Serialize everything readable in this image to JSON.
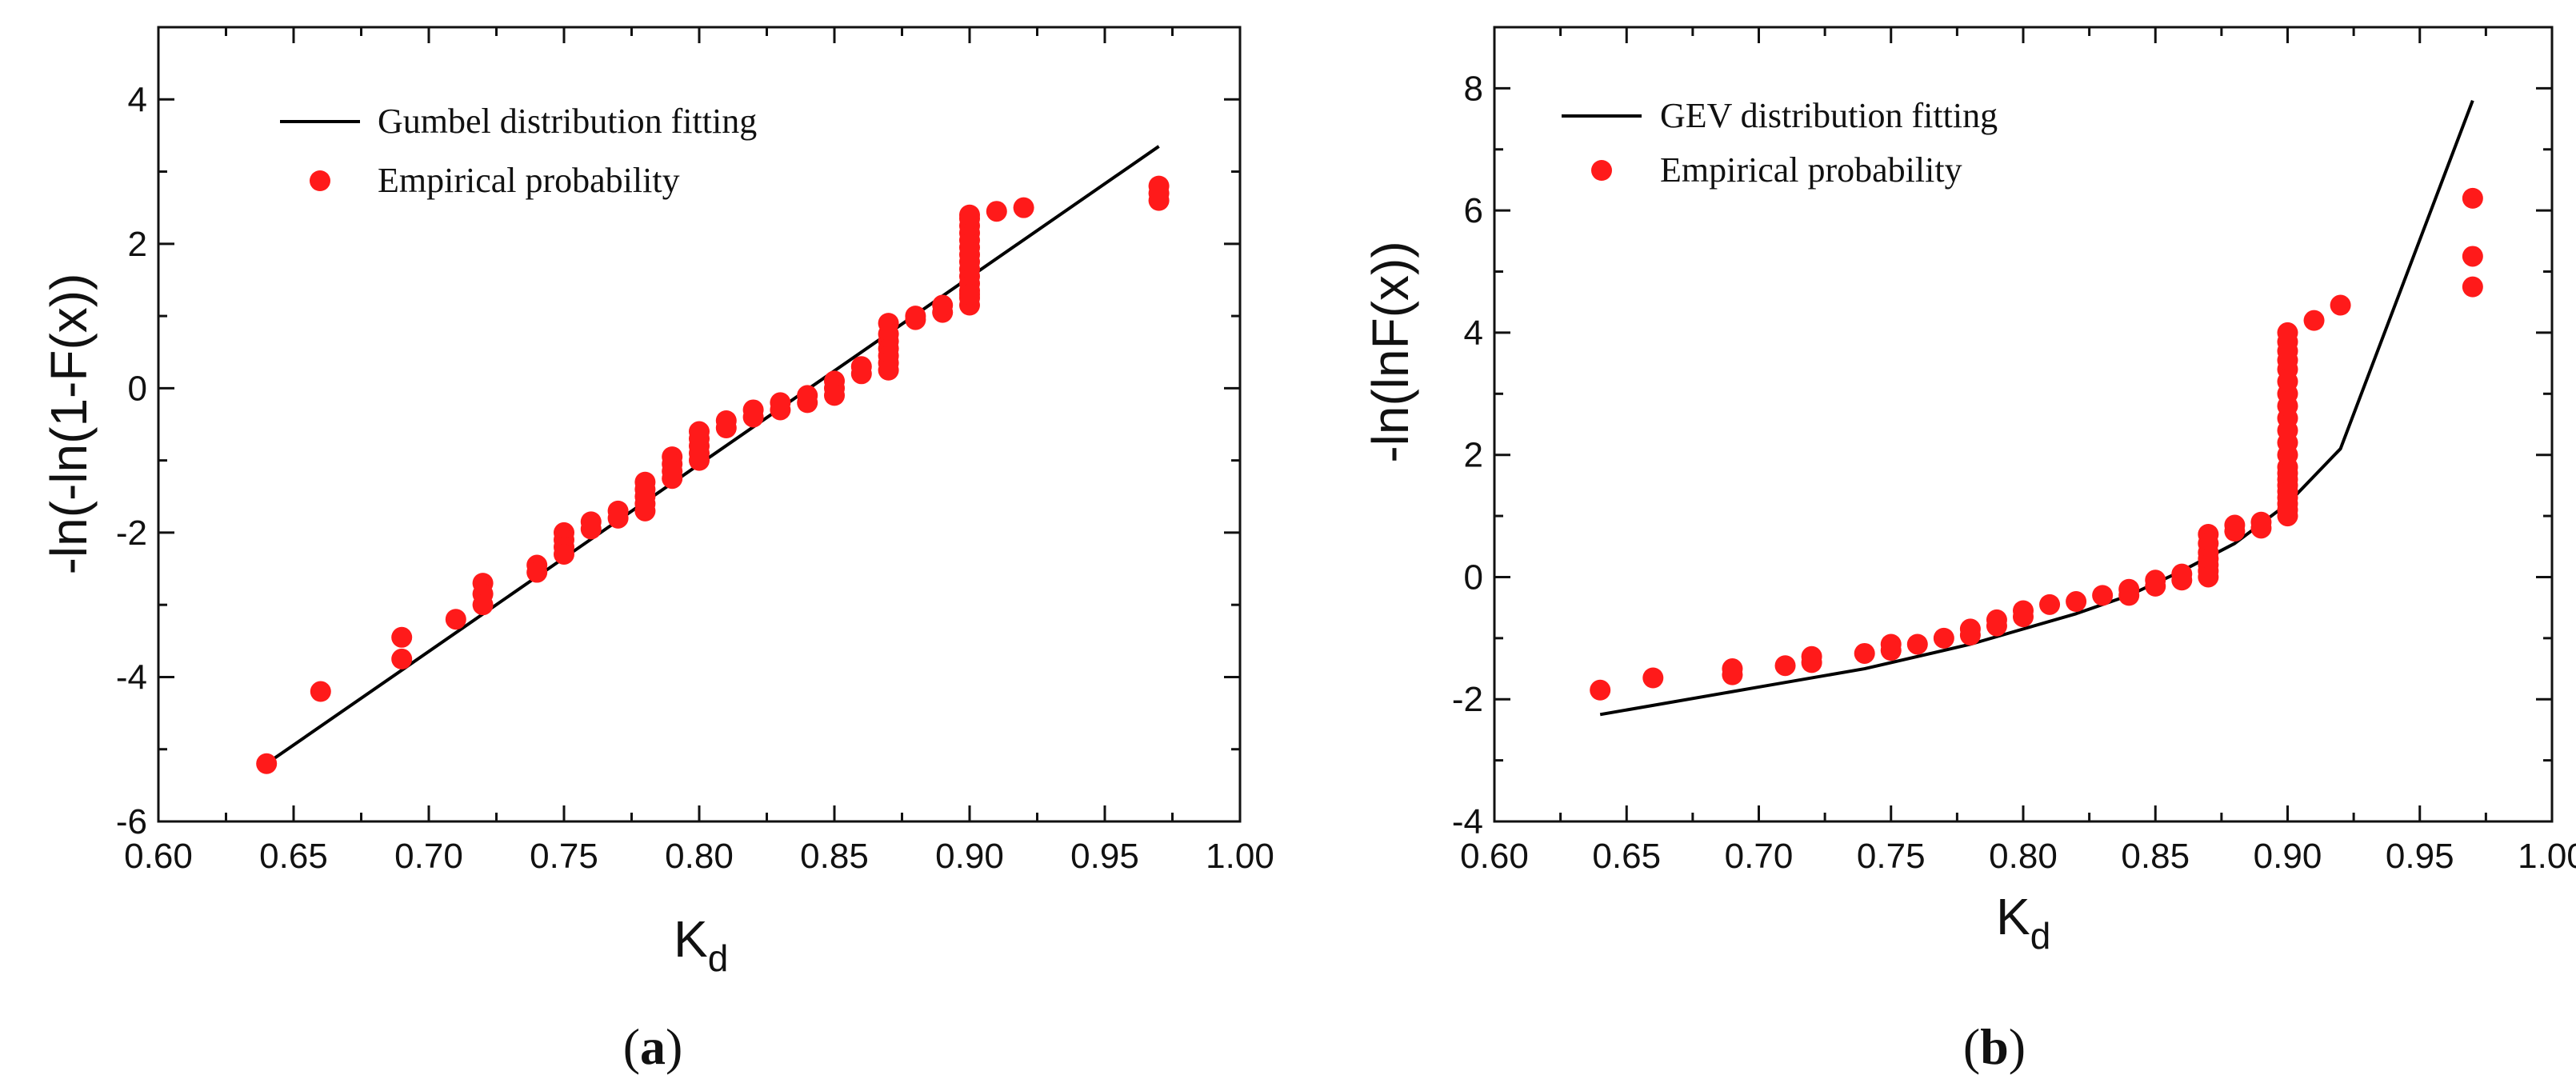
{
  "chart_data": [
    {
      "type": "scatter",
      "panel_label": {
        "open": "(",
        "letter": "a",
        "close": ")"
      },
      "xlabel": {
        "main": "K",
        "sub": "d"
      },
      "ylabel": "-ln(-ln(1-F(x))",
      "xlim": [
        0.6,
        1.0
      ],
      "ylim": [
        -6,
        5
      ],
      "xticks": [
        "0.60",
        "0.65",
        "0.70",
        "0.75",
        "0.80",
        "0.85",
        "0.90",
        "0.95",
        "1.00"
      ],
      "yticks": [
        "-6",
        "-4",
        "-2",
        "0",
        "2",
        "4"
      ],
      "legend_position": "top-left",
      "legend": {
        "line_label": "Gumbel distribution fitting",
        "point_label": "Empirical probability"
      },
      "colors": {
        "fit": "#000000",
        "points": "#ff1a1a"
      },
      "fit_line": {
        "x": [
          0.64,
          0.97
        ],
        "y": [
          -5.2,
          3.35
        ]
      },
      "points": {
        "x": [
          0.64,
          0.66,
          0.69,
          0.69,
          0.71,
          0.72,
          0.72,
          0.72,
          0.74,
          0.74,
          0.75,
          0.75,
          0.75,
          0.75,
          0.76,
          0.76,
          0.77,
          0.77,
          0.78,
          0.78,
          0.78,
          0.78,
          0.78,
          0.79,
          0.79,
          0.79,
          0.79,
          0.8,
          0.8,
          0.8,
          0.8,
          0.8,
          0.81,
          0.81,
          0.82,
          0.82,
          0.83,
          0.83,
          0.84,
          0.84,
          0.85,
          0.85,
          0.85,
          0.86,
          0.86,
          0.87,
          0.87,
          0.87,
          0.87,
          0.87,
          0.87,
          0.87,
          0.88,
          0.88,
          0.89,
          0.89,
          0.9,
          0.9,
          0.9,
          0.9,
          0.9,
          0.9,
          0.9,
          0.9,
          0.9,
          0.9,
          0.9,
          0.9,
          0.9,
          0.9,
          0.9,
          0.91,
          0.92,
          0.97,
          0.97,
          0.97
        ],
        "y": [
          -5.2,
          -4.2,
          -3.45,
          -3.75,
          -3.2,
          -2.7,
          -2.85,
          -3.0,
          -2.45,
          -2.55,
          -2.0,
          -2.1,
          -2.2,
          -2.3,
          -1.85,
          -1.95,
          -1.7,
          -1.8,
          -1.3,
          -1.4,
          -1.5,
          -1.6,
          -1.7,
          -0.95,
          -1.05,
          -1.15,
          -1.25,
          -0.6,
          -0.7,
          -0.8,
          -0.9,
          -1.0,
          -0.45,
          -0.55,
          -0.3,
          -0.4,
          -0.2,
          -0.3,
          -0.1,
          -0.2,
          0.1,
          0.0,
          -0.1,
          0.3,
          0.2,
          0.9,
          0.75,
          0.65,
          0.55,
          0.45,
          0.35,
          0.25,
          1.0,
          0.95,
          1.05,
          1.15,
          1.15,
          1.25,
          1.35,
          1.45,
          1.55,
          1.65,
          1.75,
          1.85,
          1.95,
          2.05,
          2.15,
          2.25,
          2.35,
          2.4,
          1.3,
          2.45,
          2.5,
          2.6,
          2.7,
          2.8
        ]
      }
    },
    {
      "type": "scatter",
      "panel_label": {
        "open": "(",
        "letter": "b",
        "close": ")"
      },
      "xlabel": {
        "main": "K",
        "sub": "d"
      },
      "ylabel": "-ln(lnF(x))",
      "xlim": [
        0.6,
        1.0
      ],
      "ylim": [
        -4,
        9
      ],
      "xticks": [
        "0.60",
        "0.65",
        "0.70",
        "0.75",
        "0.80",
        "0.85",
        "0.90",
        "0.95",
        "1.00"
      ],
      "yticks": [
        "-4",
        "-2",
        "0",
        "2",
        "4",
        "6",
        "8"
      ],
      "legend_position": "top-left",
      "legend": {
        "line_label": "GEV distribution fitting",
        "point_label": "Empirical probability"
      },
      "colors": {
        "fit": "#000000",
        "points": "#ff1a1a"
      },
      "fit_line": {
        "x": [
          0.64,
          0.66,
          0.7,
          0.74,
          0.78,
          0.8,
          0.82,
          0.84,
          0.86,
          0.88,
          0.9,
          0.92,
          0.97
        ],
        "y": [
          -2.25,
          -2.1,
          -1.8,
          -1.5,
          -1.1,
          -0.85,
          -0.6,
          -0.3,
          0.1,
          0.55,
          1.2,
          2.1,
          7.8
        ]
      },
      "points": {
        "x": [
          0.64,
          0.66,
          0.69,
          0.69,
          0.71,
          0.72,
          0.72,
          0.74,
          0.75,
          0.75,
          0.76,
          0.77,
          0.78,
          0.78,
          0.79,
          0.79,
          0.8,
          0.8,
          0.81,
          0.82,
          0.83,
          0.84,
          0.84,
          0.85,
          0.85,
          0.86,
          0.86,
          0.87,
          0.87,
          0.87,
          0.87,
          0.87,
          0.87,
          0.87,
          0.88,
          0.88,
          0.89,
          0.89,
          0.9,
          0.9,
          0.9,
          0.9,
          0.9,
          0.9,
          0.9,
          0.9,
          0.9,
          0.9,
          0.9,
          0.9,
          0.9,
          0.9,
          0.9,
          0.9,
          0.9,
          0.9,
          0.9,
          0.9,
          0.9,
          0.91,
          0.92,
          0.97,
          0.97,
          0.97
        ],
        "y": [
          -1.85,
          -1.65,
          -1.5,
          -1.6,
          -1.45,
          -1.3,
          -1.4,
          -1.25,
          -1.1,
          -1.2,
          -1.1,
          -1.0,
          -0.85,
          -0.95,
          -0.7,
          -0.8,
          -0.55,
          -0.65,
          -0.45,
          -0.4,
          -0.3,
          -0.2,
          -0.3,
          -0.05,
          -0.15,
          0.05,
          -0.05,
          0.7,
          0.55,
          0.4,
          0.3,
          0.2,
          0.1,
          0.0,
          0.85,
          0.75,
          0.9,
          0.8,
          1.0,
          1.2,
          1.4,
          1.6,
          1.8,
          2.0,
          2.2,
          2.4,
          2.6,
          2.8,
          3.0,
          3.2,
          3.4,
          3.55,
          3.7,
          3.85,
          4.0,
          1.1,
          1.3,
          1.5,
          1.7,
          4.2,
          4.45,
          6.2,
          5.25,
          4.75
        ]
      }
    }
  ]
}
